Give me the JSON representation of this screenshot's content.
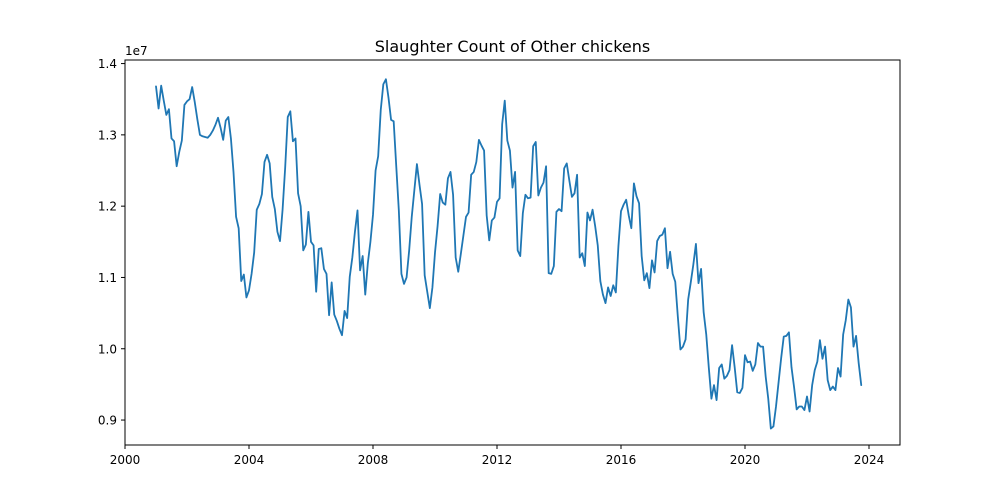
{
  "chart_data": {
    "type": "line",
    "title": "Slaughter Count of Other chickens",
    "xlabel": "",
    "ylabel": "",
    "y_offset_label": "1e7",
    "xlim": [
      2000.0,
      2025.0
    ],
    "ylim": [
      8650000,
      14050000
    ],
    "x_ticks": [
      2000,
      2004,
      2008,
      2012,
      2016,
      2020,
      2024
    ],
    "x_tick_labels": [
      "2000",
      "2004",
      "2008",
      "2012",
      "2016",
      "2020",
      "2024"
    ],
    "y_ticks": [
      9000000,
      10000000,
      11000000,
      12000000,
      13000000,
      14000000
    ],
    "y_tick_labels": [
      "0.9",
      "1.0",
      "1.1",
      "1.2",
      "1.3",
      "1.4"
    ],
    "grid": false,
    "line_color": "#1f77b4",
    "series": [
      {
        "x_start": "2001-01",
        "frequency": "monthly",
        "values": [
          13680000,
          13370000,
          13690000,
          13480000,
          13280000,
          13360000,
          12950000,
          12910000,
          12560000,
          12760000,
          12920000,
          13420000,
          13470000,
          13500000,
          13670000,
          13460000,
          13220000,
          13000000,
          12980000,
          12970000,
          12960000,
          13000000,
          13060000,
          13140000,
          13240000,
          13100000,
          12930000,
          13200000,
          13250000,
          12950000,
          12480000,
          11850000,
          11690000,
          10950000,
          11040000,
          10720000,
          10820000,
          11050000,
          11350000,
          11950000,
          12030000,
          12170000,
          12620000,
          12720000,
          12600000,
          12130000,
          11960000,
          11640000,
          11510000,
          11950000,
          12540000,
          13250000,
          13330000,
          12910000,
          12950000,
          12180000,
          12000000,
          11380000,
          11460000,
          11920000,
          11500000,
          11450000,
          10800000,
          11400000,
          11410000,
          11120000,
          11050000,
          10470000,
          10930000,
          10480000,
          10390000,
          10280000,
          10190000,
          10530000,
          10430000,
          11010000,
          11280000,
          11640000,
          11940000,
          11100000,
          11300000,
          10760000,
          11200000,
          11500000,
          11880000,
          12500000,
          12700000,
          13350000,
          13710000,
          13780000,
          13520000,
          13210000,
          13190000,
          12560000,
          11940000,
          11050000,
          10910000,
          11000000,
          11380000,
          11850000,
          12220000,
          12590000,
          12300000,
          12030000,
          11030000,
          10800000,
          10570000,
          10860000,
          11350000,
          11720000,
          12170000,
          12050000,
          12020000,
          12390000,
          12480000,
          12160000,
          11280000,
          11080000,
          11330000,
          11590000,
          11850000,
          11910000,
          12440000,
          12480000,
          12620000,
          12930000,
          12850000,
          12780000,
          11870000,
          11520000,
          11800000,
          11840000,
          12060000,
          12110000,
          13150000,
          13480000,
          12920000,
          12780000,
          12260000,
          12480000,
          11380000,
          11300000,
          11900000,
          12160000,
          12110000,
          12120000,
          12840000,
          12900000,
          12150000,
          12260000,
          12330000,
          12560000,
          11060000,
          11050000,
          11160000,
          11920000,
          11960000,
          11930000,
          12530000,
          12600000,
          12360000,
          12130000,
          12180000,
          12440000,
          11280000,
          11340000,
          11160000,
          11910000,
          11800000,
          11950000,
          11720000,
          11450000,
          10950000,
          10760000,
          10640000,
          10860000,
          10740000,
          10890000,
          10790000,
          11440000,
          11930000,
          12020000,
          12090000,
          11870000,
          11690000,
          12320000,
          12140000,
          12040000,
          11300000,
          10960000,
          11060000,
          10850000,
          11240000,
          11070000,
          11510000,
          11580000,
          11600000,
          11690000,
          11130000,
          11360000,
          11050000,
          10940000,
          10450000,
          9990000,
          10030000,
          10130000,
          10690000,
          10930000,
          11180000,
          11470000,
          10920000,
          11120000,
          10510000,
          10200000,
          9730000,
          9300000,
          9490000,
          9280000,
          9730000,
          9780000,
          9580000,
          9620000,
          9700000,
          10050000,
          9740000,
          9390000,
          9380000,
          9450000,
          9910000,
          9810000,
          9820000,
          9690000,
          9780000,
          10080000,
          10030000,
          10030000,
          9610000,
          9300000,
          8880000,
          8910000,
          9190000,
          9530000,
          9870000,
          10170000,
          10180000,
          10230000,
          9740000,
          9460000,
          9150000,
          9190000,
          9190000,
          9140000,
          9330000,
          9120000,
          9490000,
          9700000,
          9820000,
          10120000,
          9860000,
          10030000,
          9560000,
          9420000,
          9470000,
          9420000,
          9730000,
          9610000,
          10200000,
          10400000,
          10690000,
          10580000,
          10030000,
          10180000,
          9800000,
          9490000
        ]
      }
    ]
  }
}
